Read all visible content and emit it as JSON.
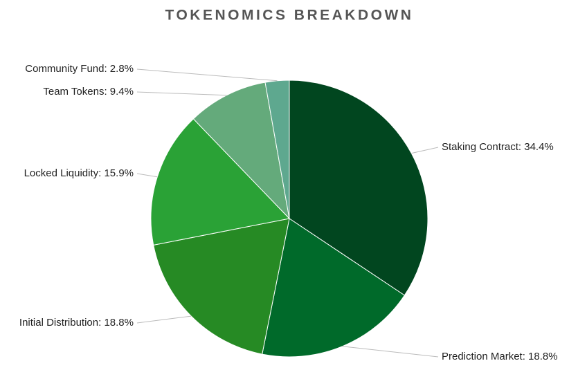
{
  "chart_data": {
    "type": "pie",
    "title": "TOKENOMICS BREAKDOWN",
    "values": [
      34.4,
      18.8,
      18.8,
      15.9,
      9.4,
      2.8
    ],
    "value_labels": [
      "Staking Contract: 34.4%",
      "Prediction Market: 18.8%",
      "Initial Distribution: 18.8%",
      "Locked Liquidity: 15.9%",
      "Team Tokens: 9.4%",
      "Community Fund: 2.8%"
    ],
    "colors": [
      "#01461f",
      "#006a2a",
      "#268a24",
      "#2aa236",
      "#64aa7b",
      "#5ea88f"
    ]
  }
}
